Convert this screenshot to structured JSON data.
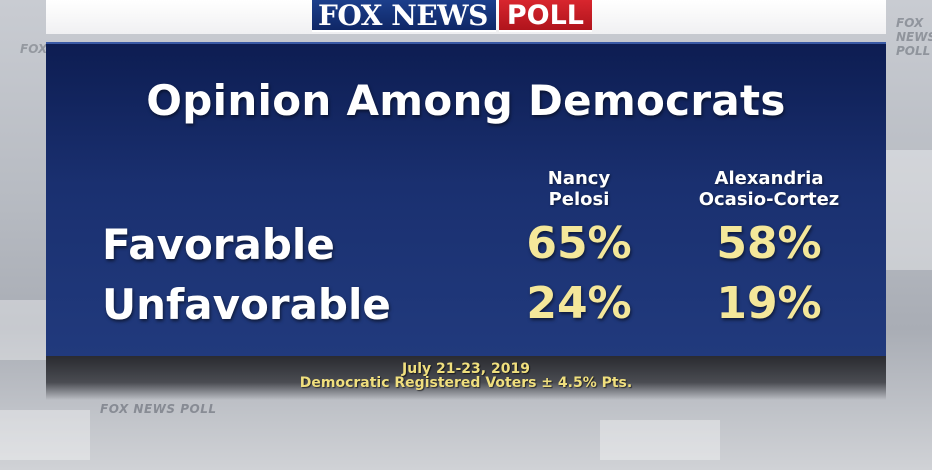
{
  "logo": {
    "fox_news": "FOX NEWS",
    "poll": "POLL"
  },
  "watermark": "FOX NEWS POLL",
  "chart_data": {
    "type": "table",
    "title": "Opinion Among Democrats",
    "columns": [
      "Nancy Pelosi",
      "Alexandria Ocasio-Cortez"
    ],
    "column_lines": [
      [
        "Nancy",
        "Pelosi"
      ],
      [
        "Alexandria",
        "Ocasio-Cortez"
      ]
    ],
    "rows": [
      {
        "label": "Favorable",
        "values": [
          "65%",
          "58%"
        ]
      },
      {
        "label": "Unfavorable",
        "values": [
          "24%",
          "19%"
        ]
      }
    ],
    "values_numeric": [
      [
        65,
        58
      ],
      [
        24,
        19
      ]
    ]
  },
  "footer": {
    "date": "July 21-23, 2019",
    "sample": "Democratic Registered Voters ± 4.5% Pts."
  },
  "colors": {
    "panel_top": "#0d1d52",
    "panel_bottom": "#213a7d",
    "value_yellow": "#f4e79a",
    "footer_yellow": "#f0df7e",
    "logo_blue": "#1c3f8c",
    "logo_red": "#d8262e"
  }
}
